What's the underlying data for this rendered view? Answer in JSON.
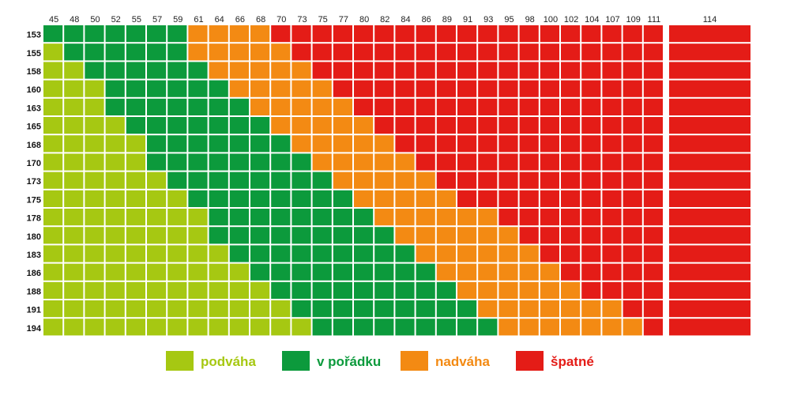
{
  "chart_data": {
    "type": "heatmap",
    "x": [
      "45",
      "48",
      "50",
      "52",
      "55",
      "57",
      "59",
      "61",
      "64",
      "66",
      "68",
      "70",
      "73",
      "75",
      "77",
      "80",
      "82",
      "84",
      "86",
      "89",
      "91",
      "93",
      "95",
      "98",
      "100",
      "102",
      "104",
      "107",
      "109",
      "111",
      "114"
    ],
    "y": [
      "153",
      "155",
      "158",
      "160",
      "163",
      "165",
      "168",
      "170",
      "173",
      "175",
      "178",
      "180",
      "183",
      "186",
      "188",
      "191",
      "194"
    ],
    "categories": [
      {
        "key": "L",
        "name": "podváha",
        "color": "#a6c812"
      },
      {
        "key": "G",
        "name": "v pořádku",
        "color": "#0c9a3c"
      },
      {
        "key": "O",
        "name": "nadváha",
        "color": "#f38a13"
      },
      {
        "key": "R",
        "name": "špatné",
        "color": "#e41c17"
      }
    ],
    "thresholds": {
      "G": [
        0,
        1,
        2,
        3,
        3,
        4,
        5,
        5,
        6,
        7,
        8,
        8,
        9,
        10,
        11,
        12,
        13
      ],
      "O": [
        7,
        7,
        8,
        9,
        10,
        11,
        12,
        13,
        14,
        15,
        16,
        17,
        18,
        19,
        20,
        21,
        22
      ],
      "R": [
        11,
        12,
        13,
        14,
        15,
        16,
        17,
        18,
        19,
        20,
        22,
        23,
        24,
        25,
        26,
        28,
        29
      ]
    }
  },
  "legend": [
    {
      "label": "podváha",
      "color": "#a6c812"
    },
    {
      "label": "v pořádku",
      "color": "#0c9a3c"
    },
    {
      "label": "nadváha",
      "color": "#f38a13"
    },
    {
      "label": "špatné",
      "color": "#e41c17"
    }
  ]
}
